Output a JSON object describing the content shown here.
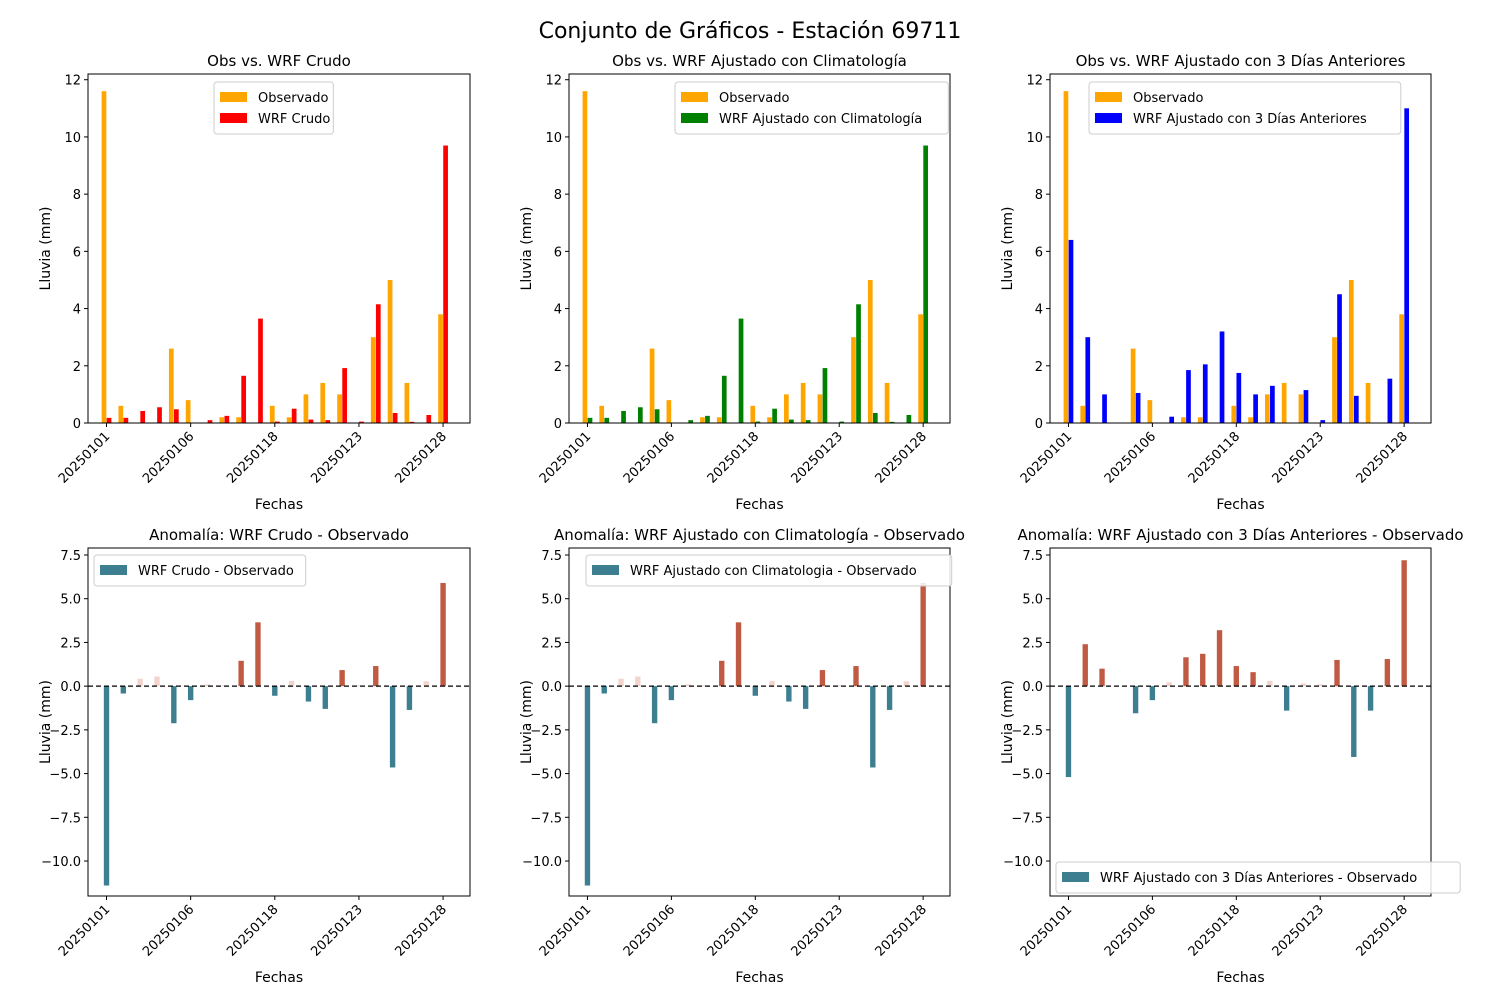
{
  "figure": {
    "suptitle": "Conjunto de Gráficos - Estación 69711"
  },
  "colors": {
    "observado": "#ffa500",
    "wrf_crudo": "#ff0000",
    "wrf_climatologia": "#008000",
    "wrf_3dias": "#0000ff",
    "anomaly_negative_strong": "#3d7f91",
    "anomaly_negative_light": "#a9cbd8",
    "anomaly_positive_light": "#f2d4cd",
    "anomaly_positive_strong": "#c05a43",
    "zero_line": "#000000"
  },
  "chart_data": [
    {
      "id": "obs-wrf-crudo",
      "type": "bar",
      "title": "Obs vs. WRF Crudo",
      "xlabel": "Fechas",
      "ylabel": "Lluvia (mm)",
      "ylim": [
        0,
        12.2
      ],
      "yticks": [
        0,
        2,
        4,
        6,
        8,
        10,
        12
      ],
      "xlim": [
        -1.1,
        21.6
      ],
      "xtick_labels": [
        "20250101",
        "20250106",
        "20250118",
        "20250123",
        "20250128"
      ],
      "xtick_positions": [
        0,
        5,
        10,
        15,
        20
      ],
      "legend": "upper center",
      "series": [
        {
          "name": "Observado",
          "color_key": "observado",
          "values": [
            11.6,
            0.6,
            0.0,
            0.0,
            2.6,
            0.8,
            0.0,
            0.2,
            0.2,
            0.0,
            0.6,
            0.2,
            1.0,
            1.4,
            1.0,
            0.0,
            3.0,
            5.0,
            1.4,
            0.0,
            3.8
          ]
        },
        {
          "name": "WRF Crudo",
          "color_key": "wrf_crudo",
          "values": [
            0.18,
            0.18,
            0.42,
            0.55,
            0.48,
            0.0,
            0.1,
            0.25,
            1.65,
            3.65,
            0.05,
            0.5,
            0.12,
            0.1,
            1.92,
            0.05,
            4.15,
            0.35,
            0.04,
            0.28,
            9.7
          ]
        }
      ]
    },
    {
      "id": "obs-wrf-clim",
      "type": "bar",
      "title": "Obs vs. WRF Ajustado con Climatología",
      "xlabel": "Fechas",
      "ylabel": "Lluvia (mm)",
      "ylim": [
        0,
        12.2
      ],
      "yticks": [
        0,
        2,
        4,
        6,
        8,
        10,
        12
      ],
      "xlim": [
        -1.1,
        21.6
      ],
      "xtick_labels": [
        "20250101",
        "20250106",
        "20250118",
        "20250123",
        "20250128"
      ],
      "xtick_positions": [
        0,
        5,
        10,
        15,
        20
      ],
      "legend": "upper right",
      "series": [
        {
          "name": "Observado",
          "color_key": "observado",
          "values": [
            11.6,
            0.6,
            0.0,
            0.0,
            2.6,
            0.8,
            0.0,
            0.2,
            0.2,
            0.0,
            0.6,
            0.2,
            1.0,
            1.4,
            1.0,
            0.0,
            3.0,
            5.0,
            1.4,
            0.0,
            3.8
          ]
        },
        {
          "name": "WRF Ajustado con Climatología",
          "color_key": "wrf_climatologia",
          "values": [
            0.18,
            0.18,
            0.42,
            0.55,
            0.48,
            0.0,
            0.1,
            0.25,
            1.65,
            3.65,
            0.05,
            0.5,
            0.12,
            0.1,
            1.92,
            0.05,
            4.15,
            0.35,
            0.04,
            0.28,
            9.7
          ]
        }
      ]
    },
    {
      "id": "obs-wrf-3dias",
      "type": "bar",
      "title": "Obs vs. WRF Ajustado con 3 Días Anteriores",
      "xlabel": "Fechas",
      "ylabel": "Lluvia (mm)",
      "ylim": [
        0,
        12.2
      ],
      "yticks": [
        0,
        2,
        4,
        6,
        8,
        10,
        12
      ],
      "xlim": [
        -1.1,
        21.6
      ],
      "xtick_labels": [
        "20250101",
        "20250106",
        "20250118",
        "20250123",
        "20250128"
      ],
      "xtick_positions": [
        0,
        5,
        10,
        15,
        20
      ],
      "legend": "upper right",
      "series": [
        {
          "name": "Observado",
          "color_key": "observado",
          "values": [
            11.6,
            0.6,
            0.0,
            0.0,
            2.6,
            0.8,
            0.0,
            0.2,
            0.2,
            0.0,
            0.6,
            0.2,
            1.0,
            1.4,
            1.0,
            0.0,
            3.0,
            5.0,
            1.4,
            0.0,
            3.8
          ]
        },
        {
          "name": "WRF Ajustado con 3 Días Anteriores",
          "color_key": "wrf_3dias",
          "values": [
            6.4,
            3.0,
            1.0,
            0.0,
            1.05,
            0.0,
            0.22,
            1.85,
            2.05,
            3.2,
            1.75,
            1.0,
            1.3,
            0.0,
            1.15,
            0.1,
            4.5,
            0.95,
            0.0,
            1.55,
            11.0
          ]
        }
      ]
    },
    {
      "id": "anom-wrf-crudo",
      "type": "bar",
      "title": "Anomalía: WRF Crudo - Observado",
      "xlabel": "Fechas",
      "ylabel": "Lluvia (mm)",
      "ylim": [
        -12.0,
        7.9
      ],
      "yticks": [
        -10.0,
        -7.5,
        -5.0,
        -2.5,
        0.0,
        2.5,
        5.0,
        7.5
      ],
      "xlim": [
        -1.1,
        21.6
      ],
      "xtick_labels": [
        "20250101",
        "20250106",
        "20250118",
        "20250123",
        "20250128"
      ],
      "xtick_positions": [
        0,
        5,
        10,
        15,
        20
      ],
      "legend": "upper left",
      "series": [
        {
          "name": "WRF Crudo - Observado",
          "color_key": "anomaly_negative_strong",
          "values": [
            -11.4,
            -0.42,
            0.42,
            0.55,
            -2.12,
            -0.8,
            0.1,
            0.05,
            1.45,
            3.65,
            -0.55,
            0.3,
            -0.88,
            -1.3,
            0.92,
            0.05,
            1.15,
            -4.65,
            -1.36,
            0.28,
            5.9
          ]
        }
      ]
    },
    {
      "id": "anom-wrf-clim",
      "type": "bar",
      "title": "Anomalía: WRF Ajustado con Climatología - Observado",
      "xlabel": "Fechas",
      "ylabel": "Lluvia (mm)",
      "ylim": [
        -12.0,
        7.9
      ],
      "yticks": [
        -10.0,
        -7.5,
        -5.0,
        -2.5,
        0.0,
        2.5,
        5.0,
        7.5
      ],
      "xlim": [
        -1.1,
        21.6
      ],
      "xtick_labels": [
        "20250101",
        "20250106",
        "20250118",
        "20250123",
        "20250128"
      ],
      "xtick_positions": [
        0,
        5,
        10,
        15,
        20
      ],
      "legend": "upper right",
      "series": [
        {
          "name": "WRF Ajustado con Climatologia - Observado",
          "color_key": "anomaly_negative_strong",
          "values": [
            -11.4,
            -0.42,
            0.42,
            0.55,
            -2.12,
            -0.8,
            0.1,
            0.05,
            1.45,
            3.65,
            -0.55,
            0.3,
            -0.88,
            -1.3,
            0.92,
            0.05,
            1.15,
            -4.65,
            -1.36,
            0.28,
            5.9
          ]
        }
      ]
    },
    {
      "id": "anom-wrf-3dias",
      "type": "bar",
      "title": "Anomalía: WRF Ajustado con 3 Días Anteriores - Observado",
      "xlabel": "Fechas",
      "ylabel": "Lluvia (mm)",
      "ylim": [
        -12.0,
        7.9
      ],
      "yticks": [
        -10.0,
        -7.5,
        -5.0,
        -2.5,
        0.0,
        2.5,
        5.0,
        7.5
      ],
      "xlim": [
        -1.1,
        21.6
      ],
      "xtick_labels": [
        "20250101",
        "20250106",
        "20250118",
        "20250123",
        "20250128"
      ],
      "xtick_positions": [
        0,
        5,
        10,
        15,
        20
      ],
      "legend": "lower left",
      "series": [
        {
          "name": "WRF Ajustado con 3 Días Anteriores - Observado",
          "color_key": "anomaly_negative_strong",
          "values": [
            -5.2,
            2.4,
            1.0,
            0.0,
            -1.55,
            -0.8,
            0.22,
            1.65,
            1.85,
            3.2,
            1.15,
            0.8,
            0.3,
            -1.4,
            0.15,
            0.1,
            1.5,
            -4.05,
            -1.4,
            1.55,
            7.2
          ]
        }
      ]
    }
  ]
}
